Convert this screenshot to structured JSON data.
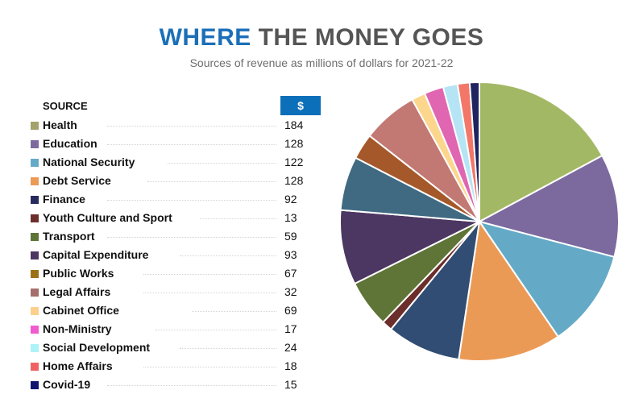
{
  "header": {
    "title_highlight": "WHERE",
    "title_rest": " THE MONEY GOES",
    "subtitle": "Sources of revenue as millions of dollars for 2021-22"
  },
  "table": {
    "col_source": "SOURCE",
    "col_value": "$"
  },
  "chart_data": {
    "type": "pie",
    "title": "WHERE THE MONEY GOES",
    "subtitle": "Sources of revenue as millions of dollars for 2021-22",
    "legend_placement": "left",
    "slices": [
      {
        "label": "Health",
        "value": 184,
        "color": "#a3b865"
      },
      {
        "label": "Education",
        "value": 128,
        "color": "#7c6a9f"
      },
      {
        "label": "National Security",
        "value": 122,
        "color": "#64aac6"
      },
      {
        "label": "Debt Service",
        "value": 128,
        "color": "#eb9a56"
      },
      {
        "label": "Finance",
        "value": 92,
        "color": "#324d73"
      },
      {
        "label": "Youth Culture and Sport",
        "value": 13,
        "color": "#6b2e2a"
      },
      {
        "label": "Transport",
        "value": 59,
        "color": "#5f7437"
      },
      {
        "label": "Capital Expenditure",
        "value": 93,
        "color": "#4b3762"
      },
      {
        "label": "Public Works",
        "value": 67,
        "color": "#3f6a82"
      },
      {
        "label": "Legal Affairs",
        "value": 32,
        "color": "#a5582a"
      },
      {
        "label": "Cabinet Office",
        "value": 69,
        "color": "#c27873"
      },
      {
        "label": "Non-Ministry",
        "value": 17,
        "color": "#fbd68c"
      },
      {
        "label": "Social Development",
        "value": 24,
        "color": "#e066b2"
      },
      {
        "label": "Home Affairs",
        "value": 18,
        "color": "#b5e4f5"
      },
      {
        "label": "Covid-19",
        "value": 15,
        "color": "#f27769"
      }
    ],
    "extra_slices": [
      {
        "value": 12,
        "color": "#1f2460"
      }
    ],
    "legend_colors": [
      "#a3a36b",
      "#7c6a9f",
      "#64aac6",
      "#eb9a56",
      "#272a5c",
      "#6b2e2a",
      "#5f7437",
      "#4b3762",
      "#9c7116",
      "#a5706b",
      "#fbd08c",
      "#f05cd0",
      "#aef3f7",
      "#f06262",
      "#11156e"
    ]
  }
}
